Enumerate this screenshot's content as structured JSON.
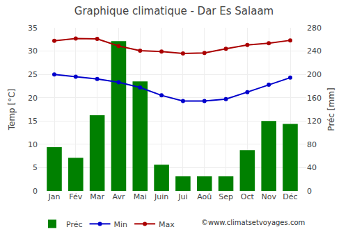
{
  "chart_data": {
    "type": "bar",
    "title": "Graphique climatique - Dar Es Salaam",
    "categories": [
      "Jan",
      "Fév",
      "Mar",
      "Avr",
      "Mai",
      "Juin",
      "Jui",
      "Aoû",
      "Sep",
      "Oct",
      "Nov",
      "Déc"
    ],
    "series": [
      {
        "name": "Préc",
        "type": "bar",
        "color": "#008000",
        "axis": "y2",
        "values": [
          75,
          57,
          130,
          257,
          188,
          45,
          25,
          25,
          25,
          70,
          120,
          115
        ]
      },
      {
        "name": "Min",
        "type": "line",
        "color": "#0000cc",
        "marker": "circle",
        "values": [
          25.0,
          24.5,
          24.0,
          23.3,
          22.2,
          20.5,
          19.3,
          19.3,
          19.7,
          21.2,
          22.8,
          24.3
        ]
      },
      {
        "name": "Max",
        "type": "line",
        "color": "#aa0000",
        "marker": "circle",
        "values": [
          32.2,
          32.7,
          32.6,
          31.1,
          30.1,
          29.9,
          29.5,
          29.6,
          30.5,
          31.3,
          31.7,
          32.3
        ]
      }
    ],
    "ylabel": "Temp [°C]",
    "y2label": "Préc [mm]",
    "ylim": [
      0,
      35
    ],
    "yticks": [
      0,
      5,
      10,
      15,
      20,
      25,
      30,
      35
    ],
    "y2lim": [
      0,
      280
    ],
    "y2ticks": [
      0,
      40,
      80,
      120,
      160,
      200,
      240,
      280
    ],
    "grid": true,
    "legend": "bottom",
    "annotations": [
      "©www.climatsetvoyages.com"
    ]
  }
}
